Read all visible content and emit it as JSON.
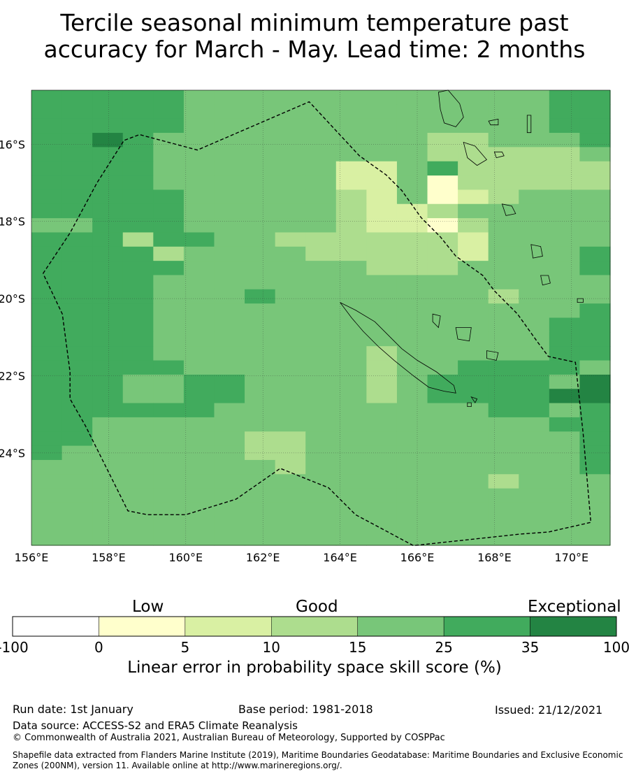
{
  "title": {
    "line1": "Tercile seasonal minimum temperature past",
    "line2": "accuracy for March - May. Lead time: 2 months"
  },
  "map": {
    "lon_range": [
      156,
      171
    ],
    "lat_range": [
      -26.5,
      -14.6
    ],
    "lat_ticks": [
      "16°S",
      "18°S",
      "20°S",
      "22°S",
      "24°S"
    ],
    "lon_ticks": [
      "156°E",
      "158°E",
      "160°E",
      "162°E",
      "164°E",
      "166°E",
      "168°E",
      "170°E"
    ],
    "colors": {
      "c0": "#ffffcc",
      "c5": "#d9f0a3",
      "c10": "#addd8e",
      "c15": "#78c679",
      "c25": "#41ab5d",
      "c35": "#238443",
      "boundary": "#000000"
    }
  },
  "colorbar": {
    "categories": [
      "Low",
      "Good",
      "Exceptional"
    ],
    "ticks": [
      "-100",
      "0",
      "5",
      "10",
      "15",
      "25",
      "35",
      "100"
    ],
    "colors": [
      "#ffffff",
      "#ffffcc",
      "#d9f0a3",
      "#addd8e",
      "#78c679",
      "#41ab5d",
      "#238443"
    ],
    "label": "Linear error in probability space skill score (%)"
  },
  "footer": {
    "run_date": "Run date: 1st January",
    "base_period": "Base period: 1981-2018",
    "issued": "Issued: 21/12/2021",
    "data_source": "Data source: ACCESS-S2 and ERA5 Climate Reanalysis",
    "copyright": "© Commonwealth of Australia 2021, Australian Bureau of Meteorology, Supported by COSPPac",
    "shapefile_line1": "Shapefile data extracted from Flanders Marine Institute (2019), Maritime Boundaries Geodatabase: Maritime Boundaries and Exclusive Economic",
    "shapefile_line2": "Zones (200NM), version 11. Available online at http://www.marineregions.org/."
  }
}
